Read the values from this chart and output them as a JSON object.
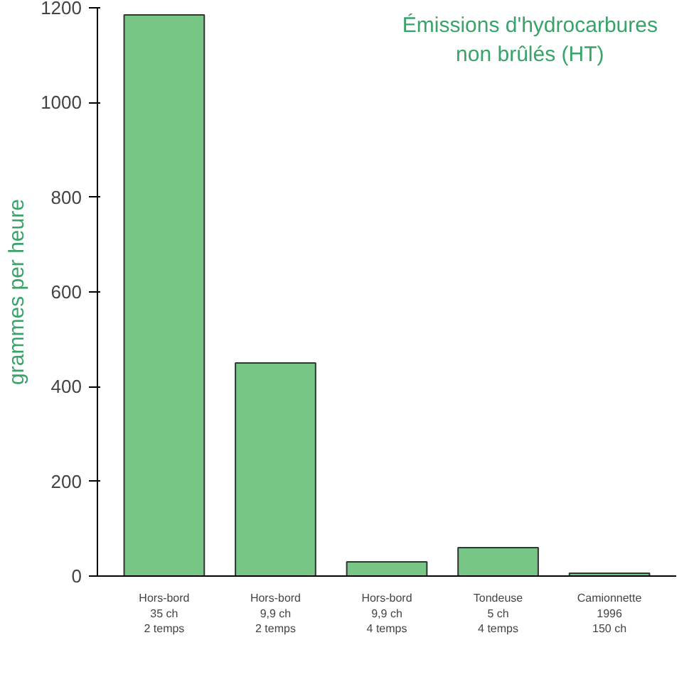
{
  "chart_data": {
    "type": "bar",
    "title": "Émissions d'hydrocarbures\nnon brûlés (HT)",
    "ylabel": "grammes per heure",
    "categories": [
      "Hors-bord\n35 ch\n2 temps",
      "Hors-bord\n9,9 ch\n2 temps",
      "Hors-bord\n9,9 ch\n4 temps",
      "Tondeuse\n5 ch\n4 temps",
      "Camionnette\n1996\n150 ch"
    ],
    "values": [
      1185,
      450,
      30,
      60,
      6
    ],
    "color": "#77c686",
    "ylim": [
      0,
      1200
    ],
    "yticks": [
      0,
      200,
      400,
      600,
      800,
      1000,
      1200
    ],
    "grid": false
  }
}
